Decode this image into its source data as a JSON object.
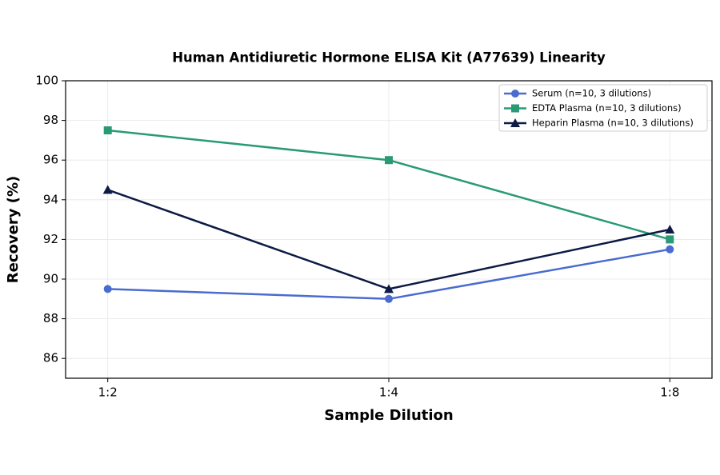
{
  "chart_data": {
    "type": "line",
    "title": "Human Antidiuretic Hormone ELISA Kit (A77639) Linearity",
    "x_label": "Sample Dilution",
    "y_label": "Recovery (%)",
    "categories": [
      "1:2",
      "1:4",
      "1:8"
    ],
    "series": [
      {
        "name": "Serum (n=10, 3 dilutions)",
        "color": "#4a6cd0",
        "marker": "circle",
        "values": [
          89.5,
          89.0,
          91.5
        ]
      },
      {
        "name": "EDTA Plasma (n=10, 3 dilutions)",
        "color": "#2a9a76",
        "marker": "square",
        "values": [
          97.5,
          96.0,
          92.0
        ]
      },
      {
        "name": "Heparin Plasma (n=10, 3 dilutions)",
        "color": "#0d1b45",
        "marker": "triangle",
        "values": [
          94.5,
          89.5,
          92.5
        ]
      }
    ],
    "ylim": [
      85,
      100
    ],
    "yticks": [
      86,
      88,
      90,
      92,
      94,
      96,
      98,
      100
    ],
    "grid": true,
    "legend": "upper-right"
  }
}
